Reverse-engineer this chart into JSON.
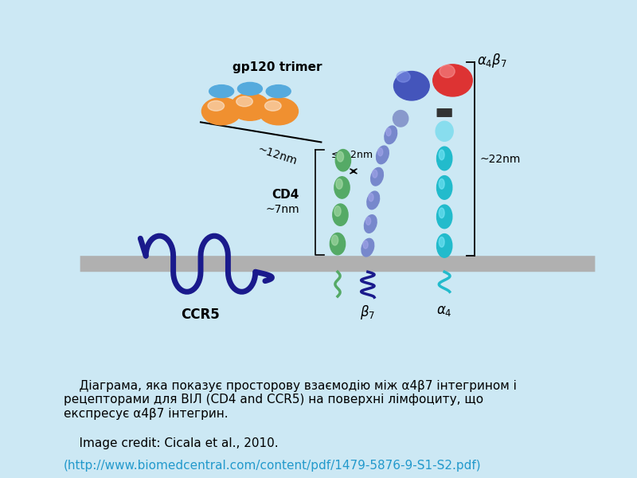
{
  "bg_color": "#cce8f4",
  "panel_bg": "#ffffff",
  "membrane_color": "#b0b0b0",
  "ccr5_color": "#1a1a8c",
  "cd4_color": "#55aa66",
  "beta7_color": "#7788cc",
  "alpha4_color": "#22bbcc",
  "alpha4_light": "#88ddee",
  "gp120_orange": "#f09030",
  "gp120_blue": "#55aadd",
  "ab7_blue_head": "#4455bb",
  "ab7_red_head": "#dd3333",
  "ab7_blue_neck": "#6677cc",
  "url_color": "#2299cc",
  "text1": "    Діаграма, яка показує просторову взаємодію між α4β7 інтегрином і",
  "text2": "рецепторами для ВІЛ (CD4 and CCR5) на поверхні лімфоциту, що",
  "text3": "експресує α4β7 інтегрин.",
  "credit": "    Image credit: Cicala et al., 2010.",
  "url": "(http://www.biomedcentral.com/content/pdf/1479-5876-9-S1-S2.pdf)"
}
